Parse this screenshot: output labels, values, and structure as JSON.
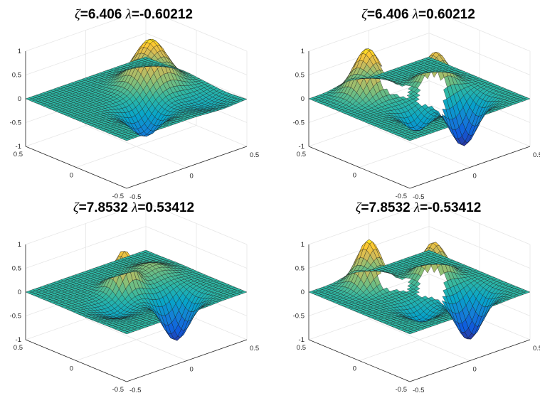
{
  "chart_data": [
    {
      "type": "surface",
      "title": "ζ=6.406 λ=-0.60212",
      "zeta": "6.406",
      "lambda": "-0.60212",
      "mode": "single",
      "x_ticks": [
        "-0.5",
        "0",
        "0.5"
      ],
      "y_ticks": [
        "-0.5",
        "0",
        "0.5"
      ],
      "z_ticks": [
        "-1",
        "-0.5",
        "0",
        "0.5",
        "1"
      ],
      "xlim": [
        -0.5,
        0.5
      ],
      "ylim": [
        -0.5,
        0.5
      ],
      "zlim": [
        -1,
        1
      ],
      "grid": true
    },
    {
      "type": "surface",
      "title": "ζ=6.406 λ=0.60212",
      "zeta": "6.406",
      "lambda": "0.60212",
      "mode": "split",
      "x_ticks": [
        "-0.5",
        "0",
        "0.5"
      ],
      "y_ticks": [
        "-0.5",
        "0",
        "0.5"
      ],
      "z_ticks": [
        "-1",
        "-0.5",
        "0",
        "0.5",
        "1"
      ],
      "xlim": [
        -0.5,
        0.5
      ],
      "ylim": [
        -0.5,
        0.5
      ],
      "zlim": [
        -1,
        1
      ],
      "grid": true
    },
    {
      "type": "surface",
      "title": "ζ=7.8532 λ=0.53412",
      "zeta": "7.8532",
      "lambda": "0.53412",
      "mode": "single",
      "x_ticks": [
        "-0.5",
        "0",
        "0.5"
      ],
      "y_ticks": [
        "-0.5",
        "0",
        "0.5"
      ],
      "z_ticks": [
        "-1",
        "-0.5",
        "0",
        "0.5",
        "1"
      ],
      "xlim": [
        -0.5,
        0.5
      ],
      "ylim": [
        -0.5,
        0.5
      ],
      "zlim": [
        -1,
        1
      ],
      "grid": true
    },
    {
      "type": "surface",
      "title": "ζ=7.8532 λ=-0.53412",
      "zeta": "7.8532",
      "lambda": "-0.53412",
      "mode": "split",
      "x_ticks": [
        "-0.5",
        "0",
        "0.5"
      ],
      "y_ticks": [
        "-0.5",
        "0",
        "0.5"
      ],
      "z_ticks": [
        "-1",
        "-0.5",
        "0",
        "0.5",
        "1"
      ],
      "xlim": [
        -0.5,
        0.5
      ],
      "ylim": [
        -0.5,
        0.5
      ],
      "zlim": [
        -1,
        1
      ],
      "grid": true
    }
  ],
  "colormap": [
    "#352a87",
    "#0f5cdd",
    "#1481d6",
    "#06a4ca",
    "#2eb7a4",
    "#87bf77",
    "#d1bb59",
    "#fec832",
    "#f9fb0e"
  ]
}
